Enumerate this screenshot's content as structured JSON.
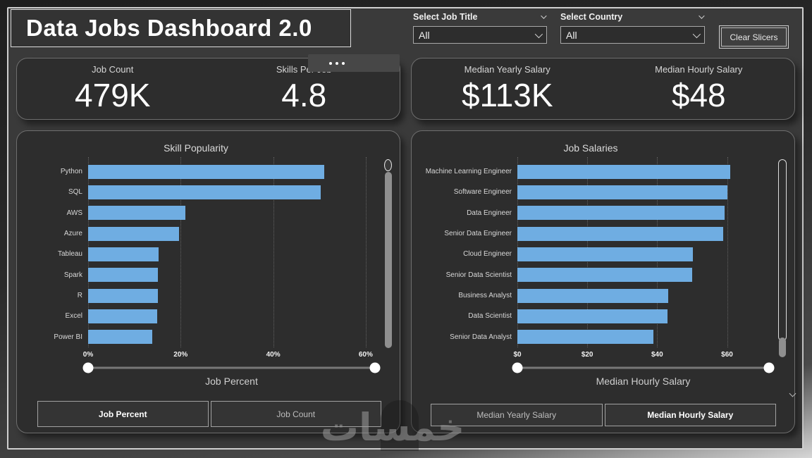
{
  "header": {
    "title": "Data Jobs Dashboard 2.0",
    "slicers": [
      {
        "label": "Select Job Title",
        "value": "All"
      },
      {
        "label": "Select Country",
        "value": "All"
      }
    ],
    "clear_button": "Clear Slicers"
  },
  "kpis": {
    "left": [
      {
        "label": "Job Count",
        "value": "479K"
      },
      {
        "label": "Skills Per Job",
        "value": "4.8"
      }
    ],
    "right": [
      {
        "label": "Median Yearly Salary",
        "value": "$113K"
      },
      {
        "label": "Median Hourly Salary",
        "value": "$48"
      }
    ]
  },
  "chart_data": [
    {
      "type": "bar",
      "orientation": "horizontal",
      "title": "Skill Popularity",
      "categories": [
        "Python",
        "SQL",
        "AWS",
        "Azure",
        "Tableau",
        "Spark",
        "R",
        "Excel",
        "Power BI"
      ],
      "values": [
        51,
        50.3,
        21,
        19.7,
        15.3,
        15.1,
        15.1,
        14.9,
        13.8
      ],
      "value_unit": "percent",
      "x_ticks": [
        "0%",
        "20%",
        "40%",
        "60%"
      ],
      "x_tick_values": [
        0,
        20,
        40,
        60
      ],
      "xlim": [
        0,
        62
      ],
      "xlabel": "Job Percent",
      "slider_label": "Job Percent",
      "bar_color": "#6fade2",
      "grid": "dotted-vertical",
      "buttons": [
        {
          "label": "Job Percent",
          "selected": true
        },
        {
          "label": "Job Count",
          "selected": false
        }
      ]
    },
    {
      "type": "bar",
      "orientation": "horizontal",
      "title": "Job Salaries",
      "categories": [
        "Machine Learning Engineer",
        "Software Engineer",
        "Data Engineer",
        "Senior Data Engineer",
        "Cloud Engineer",
        "Senior Data Scientist",
        "Business Analyst",
        "Data Scientist",
        "Senior Data Analyst"
      ],
      "values": [
        61,
        60,
        59.2,
        58.8,
        50.3,
        50,
        43.2,
        43,
        38.9
      ],
      "value_unit": "dollars-per-hour",
      "x_ticks": [
        "$0",
        "$20",
        "$40",
        "$60"
      ],
      "x_tick_values": [
        0,
        20,
        40,
        60
      ],
      "xlim": [
        0,
        72
      ],
      "xlabel": "Median Hourly Salary",
      "slider_label": "Median Hourly Salary",
      "bar_color": "#6fade2",
      "grid": "dotted-vertical",
      "buttons": [
        {
          "label": "Median Yearly Salary",
          "selected": false
        },
        {
          "label": "Median Hourly Salary",
          "selected": true
        }
      ]
    }
  ],
  "watermark": {
    "text": "خمسات"
  },
  "colors": {
    "bar": "#6fade2",
    "canvas_bg": "#3a3a3a",
    "panel_bg": "#2d2d2d",
    "text": "#ffffff"
  }
}
